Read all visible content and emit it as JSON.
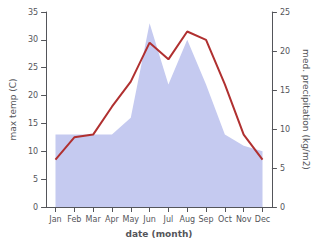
{
  "chart_data": {
    "type": "line",
    "xlabel": "date (month)",
    "ylabel": "max temp (C)",
    "y2label": "med. precipitation (kg/m2)",
    "categories": [
      "Jan",
      "Feb",
      "Mar",
      "Apr",
      "May",
      "Jun",
      "Jul",
      "Aug",
      "Sep",
      "Oct",
      "Nov",
      "Dec"
    ],
    "series": [
      {
        "type": "area",
        "color": "#c5caf0",
        "values": [
          13,
          13,
          13,
          13,
          16,
          33,
          22,
          30,
          22,
          13,
          11,
          10
        ]
      },
      {
        "type": "line",
        "color": "#b03030",
        "values": [
          8.5,
          12.5,
          13.0,
          18.0,
          22.5,
          29.5,
          26.5,
          31.5,
          30.0,
          22.0,
          13.0,
          8.5
        ]
      }
    ],
    "ylim": [
      0,
      35
    ],
    "yticks": [
      0,
      5,
      10,
      15,
      20,
      25,
      30,
      35
    ],
    "y2lim": [
      0,
      25
    ],
    "y2ticks": [
      0,
      5,
      10,
      15,
      20,
      25
    ],
    "grid": false
  }
}
